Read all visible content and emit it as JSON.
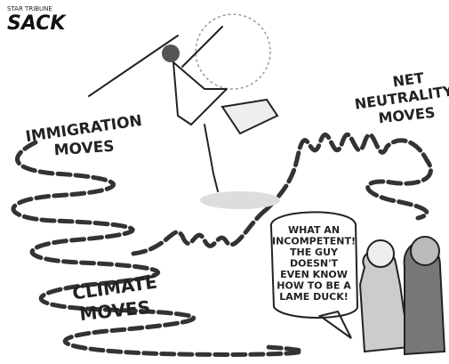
{
  "signature": {
    "publication": "STAR TRIBUNE",
    "artist": "SACK"
  },
  "labels": [
    {
      "lines": [
        "IMMIGRATION",
        "MOVES"
      ]
    },
    {
      "lines": [
        "NET",
        "NEUTRALITY",
        "MOVES"
      ]
    },
    {
      "lines": [
        "CLIMATE",
        "MOVES"
      ]
    }
  ],
  "speech_bubble": {
    "lines": [
      "WHAT AN",
      "INCOMPETENT!",
      "THE GUY",
      "DOESN'T",
      "EVEN KNOW",
      "HOW TO BE A",
      "LAME DUCK!"
    ]
  }
}
